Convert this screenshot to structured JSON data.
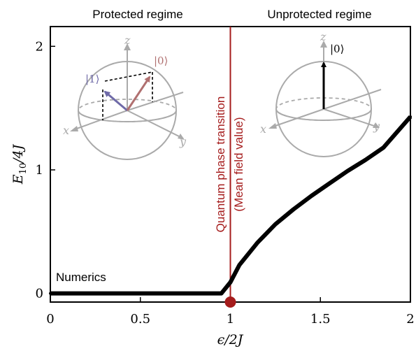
{
  "chart_data": {
    "type": "line",
    "xlabel": "ϵ/2J",
    "ylabel": "E10/4J",
    "xlim": [
      0,
      2
    ],
    "ylim": [
      -0.07,
      2.16
    ],
    "xticks": [
      0,
      0.5,
      1,
      1.5,
      2
    ],
    "xtick_labels": [
      "0",
      "0.5",
      "1",
      "1.5",
      "2"
    ],
    "yticks": [
      0,
      1,
      2
    ],
    "ytick_labels": [
      "0",
      "1",
      "2"
    ],
    "grid": false,
    "series": [
      {
        "name": "Numerics",
        "x": [
          0,
          0.95,
          1.0,
          1.05,
          1.15,
          1.25,
          1.35,
          1.45,
          1.55,
          1.65,
          1.75,
          1.85,
          2.0
        ],
        "y": [
          0,
          0,
          0.09,
          0.23,
          0.41,
          0.56,
          0.68,
          0.79,
          0.89,
          0.99,
          1.08,
          1.18,
          1.43
        ]
      }
    ],
    "transition": {
      "x": 1.0,
      "marker_y": -0.07
    },
    "annotations": {
      "regime_left": "Protected regime",
      "regime_right": "Unprotected regime",
      "transition_line1": "Quantum phase transition",
      "transition_line2": "(Mean field value)"
    },
    "colors": {
      "curve": "#000000",
      "transition": "#a51c1c",
      "sphere": "#aaaaaa",
      "state_one": "#6f6aa8",
      "state_zero": "#b07070"
    }
  },
  "bloch_left": {
    "axis_x": "x",
    "axis_y": "y",
    "axis_z": "z",
    "ket_one": "|1⟩",
    "ket_zero": "|0⟩"
  },
  "bloch_right": {
    "axis_x": "x",
    "axis_y": "y",
    "axis_z": "z",
    "ket_zero": "|0⟩"
  }
}
